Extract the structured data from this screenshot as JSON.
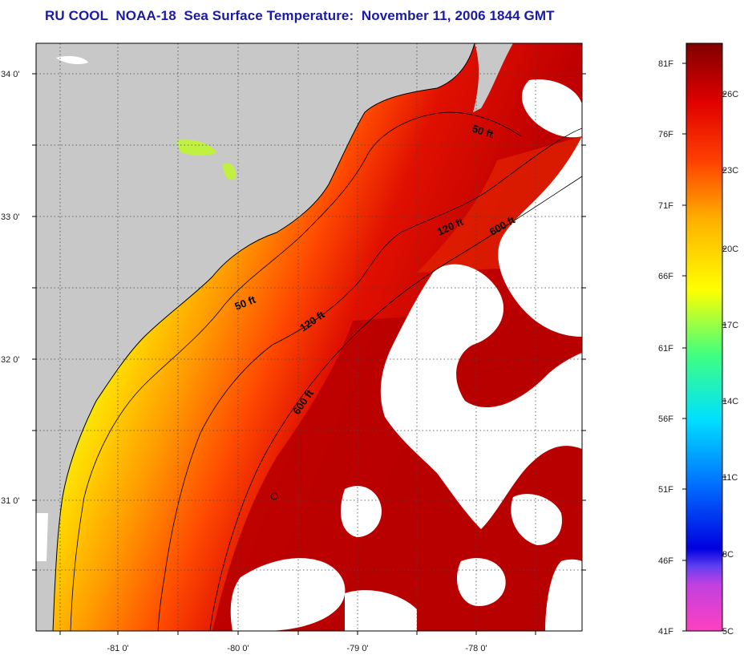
{
  "title": "RU COOL  NOAA-18  Sea Surface Temperature:  November 11, 2006 1844 GMT",
  "map": {
    "lat_ticks": [
      "34 0'",
      "33 0'",
      "32 0'",
      "31 0'"
    ],
    "lon_ticks": [
      "-81 0'",
      "-80 0'",
      "-79 0'",
      "-78 0'"
    ],
    "contours": [
      {
        "label": "50 ft",
        "depth_ft": 50
      },
      {
        "label": "50 ft",
        "depth_ft": 50
      },
      {
        "label": "120 ft",
        "depth_ft": 120
      },
      {
        "label": "120 ft",
        "depth_ft": 120
      },
      {
        "label": "600 ft",
        "depth_ft": 600
      },
      {
        "label": "600 ft",
        "depth_ft": 600
      }
    ],
    "colors": {
      "land": "#c8c8c8",
      "cloud_mask": "#ffffff",
      "grid": "#444444"
    }
  },
  "colorbar": {
    "fahrenheit_labels": [
      "81F",
      "76F",
      "71F",
      "66F",
      "61F",
      "56F",
      "51F",
      "46F",
      "41F"
    ],
    "celsius_labels": [
      "26C",
      "23C",
      "20C",
      "17C",
      "14C",
      "11C",
      "8C",
      "5C"
    ],
    "colors": [
      "#ff40c0",
      "#a040e0",
      "#0000e0",
      "#0080ff",
      "#00e0ff",
      "#40ff80",
      "#ffff00",
      "#ffb000",
      "#ff4000",
      "#e00000",
      "#800000"
    ]
  }
}
